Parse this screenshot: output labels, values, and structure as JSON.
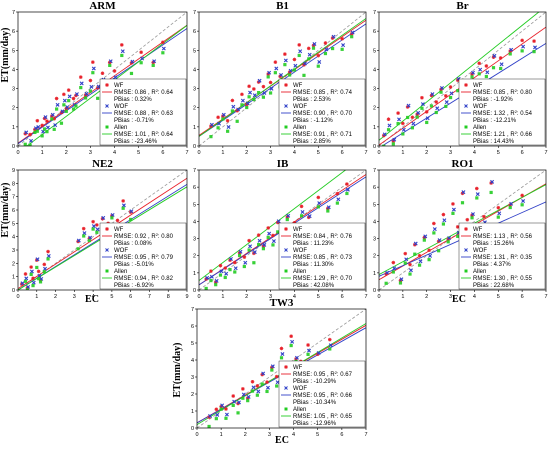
{
  "figure": {
    "ylabel": "ET(mm/day)",
    "xlabel": "EC"
  },
  "colors": {
    "WF": "#e8202a",
    "WOF": "#3040c8",
    "Allen": "#22cc22",
    "one_to_one": "#9a9a9a"
  },
  "legend_names": [
    "WF",
    "WOF",
    "Allen"
  ],
  "chart_data": [
    {
      "type": "scatter",
      "title": "ARM",
      "xlim": [
        0,
        7
      ],
      "ylim": [
        0,
        7
      ],
      "xticks": [
        0,
        1,
        2,
        3,
        4,
        5,
        6,
        7
      ],
      "yticks": [
        0,
        1,
        2,
        3,
        4,
        5,
        6,
        7
      ],
      "stats": [
        {
          "name": "WF",
          "rmse": "RMSE: 0.86 , R",
          "r2": ": 0.64",
          "pbias": "PBias : 0.32%",
          "slope": 0.88,
          "intercept": 0.15
        },
        {
          "name": "WOF",
          "rmse": "RMSE: 0.88 , R",
          "r2": ": 0.63",
          "pbias": "PBias : -0.71%",
          "slope": 0.86,
          "intercept": 0.12
        },
        {
          "name": "Allen",
          "rmse": "RMSE: 1.01 , R",
          "r2": ": 0.64",
          "pbias": "PBias : -23.46%",
          "slope": 0.95,
          "intercept": -0.35
        }
      ],
      "x": [
        0.3,
        0.5,
        0.7,
        0.8,
        1.0,
        1.1,
        1.2,
        1.4,
        1.5,
        1.6,
        1.8,
        1.9,
        2.0,
        2.1,
        2.3,
        2.4,
        2.6,
        2.8,
        3.0,
        3.1,
        3.3,
        3.5,
        3.8,
        4.0,
        4.3,
        4.7,
        5.1,
        5.6,
        6.0
      ],
      "y": [
        0.6,
        0.4,
        0.9,
        1.2,
        0.8,
        1.4,
        1.1,
        1.6,
        1.3,
        2.2,
        1.7,
        2.5,
        2.0,
        2.8,
        2.2,
        2.6,
        3.4,
        2.7,
        3.3,
        4.1,
        3.0,
        3.6,
        4.4,
        3.8,
        5.0,
        4.3,
        4.7,
        4.4,
        5.3
      ]
    },
    {
      "type": "scatter",
      "title": "B1",
      "xlim": [
        0,
        7
      ],
      "ylim": [
        0,
        7
      ],
      "xticks": [
        0,
        1,
        2,
        3,
        4,
        5,
        6,
        7
      ],
      "yticks": [
        0,
        1,
        2,
        3,
        4,
        5,
        6,
        7
      ],
      "stats": [
        {
          "name": "WF",
          "rmse": "RMSE: 0.85 , R",
          "r2": ": 0.74",
          "pbias": "PBias : 2.53%",
          "slope": 0.86,
          "intercept": 0.55
        },
        {
          "name": "WOF",
          "rmse": "RMSE: 0.90 , R",
          "r2": ": 0.70",
          "pbias": "PBias : -1.12%",
          "slope": 0.84,
          "intercept": 0.5
        },
        {
          "name": "Allen",
          "rmse": "RMSE: 0.91 , R",
          "r2": ": 0.71",
          "pbias": "PBias : 2.85%",
          "slope": 0.88,
          "intercept": 0.5
        }
      ],
      "x": [
        0.5,
        0.8,
        1.0,
        1.2,
        1.4,
        1.6,
        1.8,
        2.0,
        2.1,
        2.3,
        2.5,
        2.7,
        2.9,
        3.0,
        3.2,
        3.4,
        3.6,
        3.8,
        4.0,
        4.2,
        4.4,
        4.6,
        4.8,
        5.0,
        5.3,
        5.6,
        6.0,
        6.4
      ],
      "y": [
        1.0,
        1.3,
        1.6,
        1.2,
        2.1,
        1.8,
        2.5,
        2.2,
        3.0,
        2.7,
        3.3,
        2.9,
        3.8,
        3.2,
        4.1,
        3.6,
        4.6,
        3.9,
        4.4,
        5.0,
        4.2,
        4.9,
        5.3,
        4.6,
        5.1,
        5.6,
        5.4,
        5.9
      ]
    },
    {
      "type": "scatter",
      "title": "Br",
      "xlim": [
        0,
        7
      ],
      "ylim": [
        0,
        7
      ],
      "xticks": [
        0,
        1,
        2,
        3,
        4,
        5,
        6,
        7
      ],
      "yticks": [
        0,
        1,
        2,
        3,
        4,
        5,
        6,
        7
      ],
      "stats": [
        {
          "name": "WF",
          "rmse": "RMSE: 0.85 , R",
          "r2": ": 0.80",
          "pbias": "PBias : -1.92%",
          "slope": 0.88,
          "intercept": 0.05
        },
        {
          "name": "WOF",
          "rmse": "RMSE: 1.32 , R",
          "r2": ": 0.54",
          "pbias": "PBias : -12.21%",
          "slope": 0.78,
          "intercept": -0.1
        },
        {
          "name": "Allen",
          "rmse": "RMSE: 1.21 , R",
          "r2": ": 0.66",
          "pbias": "PBias : 14.43%",
          "slope": 1.0,
          "intercept": 0.3
        }
      ],
      "x": [
        0.2,
        0.4,
        0.6,
        0.8,
        1.0,
        1.2,
        1.4,
        1.6,
        1.8,
        2.0,
        2.2,
        2.4,
        2.6,
        2.8,
        3.0,
        3.3,
        3.6,
        3.9,
        4.2,
        4.5,
        4.8,
        5.1,
        5.5,
        6.0,
        6.5
      ],
      "y": [
        0.5,
        1.2,
        0.3,
        1.6,
        0.9,
        2.0,
        1.3,
        1.7,
        2.4,
        1.5,
        2.6,
        2.1,
        3.0,
        2.5,
        2.8,
        3.4,
        3.1,
        3.8,
        4.2,
        3.9,
        4.6,
        4.4,
        5.0,
        5.4,
        5.2
      ]
    },
    {
      "type": "scatter",
      "title": "NE2",
      "xlim": [
        0,
        9
      ],
      "ylim": [
        0,
        9
      ],
      "xticks": [
        0,
        1,
        2,
        3,
        4,
        5,
        6,
        7,
        8,
        9
      ],
      "yticks": [
        0,
        1,
        2,
        3,
        4,
        5,
        6,
        7,
        8,
        9
      ],
      "stats": [
        {
          "name": "WF",
          "rmse": "RMSE: 0.92 , R",
          "r2": ": 0.80",
          "pbias": "PBias : 0.08%",
          "slope": 0.92,
          "intercept": 0.1
        },
        {
          "name": "WOF",
          "rmse": "RMSE: 0.95 , R",
          "r2": ": 0.79",
          "pbias": "PBias : -5.01%",
          "slope": 0.88,
          "intercept": 0.0
        },
        {
          "name": "Allen",
          "rmse": "RMSE: 0.94 , R",
          "r2": ": 0.82",
          "pbias": "PBias : -6.92%",
          "slope": 0.86,
          "intercept": 0.0
        }
      ],
      "x": [
        0.2,
        0.4,
        0.5,
        0.7,
        0.8,
        1.0,
        1.1,
        1.2,
        1.4,
        1.6,
        3.2,
        3.5,
        3.8,
        4.0,
        4.2,
        4.5,
        4.8,
        5.0,
        5.3,
        5.6,
        6.0
      ],
      "y": [
        0.4,
        1.0,
        0.2,
        1.6,
        0.6,
        2.2,
        1.2,
        0.8,
        1.8,
        2.6,
        3.6,
        4.4,
        3.9,
        5.0,
        4.6,
        5.3,
        4.8,
        5.6,
        5.1,
        6.4,
        5.8
      ]
    },
    {
      "type": "scatter",
      "title": "IB",
      "xlim": [
        0,
        7
      ],
      "ylim": [
        0,
        7
      ],
      "xticks": [
        0,
        1,
        2,
        3,
        4,
        5,
        6,
        7
      ],
      "yticks": [
        0,
        1,
        2,
        3,
        4,
        5,
        6,
        7
      ],
      "stats": [
        {
          "name": "WF",
          "rmse": "RMSE: 0.84 , R",
          "r2": ": 0.76",
          "pbias": "PBias : 11.23%",
          "slope": 0.92,
          "intercept": 0.3
        },
        {
          "name": "WOF",
          "rmse": "RMSE: 0.85 , R",
          "r2": ": 0.73",
          "pbias": "PBias : 11.30%",
          "slope": 0.9,
          "intercept": 0.3
        },
        {
          "name": "Allen",
          "rmse": "RMSE: 1.29 , R",
          "r2": ": 0.70",
          "pbias": "PBias : 42.08%",
          "slope": 1.05,
          "intercept": 0.55
        }
      ],
      "x": [
        0.3,
        0.5,
        0.7,
        0.9,
        1.1,
        1.3,
        1.5,
        1.7,
        1.9,
        2.1,
        2.3,
        2.5,
        2.7,
        2.9,
        3.1,
        3.3,
        3.5,
        3.7,
        4.0,
        4.3,
        4.6,
        5.0,
        5.4,
        5.8,
        6.2
      ],
      "y": [
        0.6,
        0.9,
        0.5,
        1.3,
        1.0,
        1.7,
        1.4,
        2.2,
        1.8,
        2.6,
        2.1,
        3.0,
        2.6,
        3.5,
        2.9,
        3.9,
        3.3,
        4.3,
        3.8,
        4.6,
        4.2,
        5.2,
        4.8,
        5.5,
        5.9
      ]
    },
    {
      "type": "scatter",
      "title": "RO1",
      "xlim": [
        0,
        7
      ],
      "ylim": [
        0,
        7
      ],
      "xticks": [
        0,
        1,
        2,
        3,
        4,
        5,
        6,
        7
      ],
      "yticks": [
        0,
        1,
        2,
        3,
        4,
        5,
        6,
        7
      ],
      "stats": [
        {
          "name": "WF",
          "rmse": "RMSE: 1.13 , R",
          "r2": ": 0.56",
          "pbias": "PBias : 15.26%",
          "slope": 0.8,
          "intercept": 0.6
        },
        {
          "name": "WOF",
          "rmse": "RMSE: 1.31 , R",
          "r2": ": 0.35",
          "pbias": "PBias : 4.37%",
          "slope": 0.62,
          "intercept": 0.8
        },
        {
          "name": "Allen",
          "rmse": "RMSE: 1.30 , R",
          "r2": ": 0.55",
          "pbias": "PBias : 22.68%",
          "slope": 0.75,
          "intercept": 0.9
        }
      ],
      "x": [
        0.3,
        0.6,
        0.9,
        1.1,
        1.3,
        1.5,
        1.7,
        1.9,
        2.1,
        2.3,
        2.5,
        2.7,
        2.9,
        3.1,
        3.3,
        3.5,
        3.7,
        3.9,
        4.1,
        4.4,
        4.7,
        5.0,
        5.5,
        6.0
      ],
      "y": [
        0.9,
        1.4,
        0.6,
        2.0,
        1.2,
        2.6,
        1.8,
        3.1,
        2.2,
        3.6,
        2.8,
        4.2,
        3.0,
        4.9,
        3.4,
        5.6,
        3.9,
        4.4,
        5.8,
        4.0,
        6.2,
        4.6,
        5.0,
        5.4
      ]
    },
    {
      "type": "scatter",
      "title": "TW3",
      "xlim": [
        0,
        7
      ],
      "ylim": [
        0,
        7
      ],
      "xticks": [
        0,
        1,
        2,
        3,
        4,
        5,
        6,
        7
      ],
      "yticks": [
        0,
        1,
        2,
        3,
        4,
        5,
        6,
        7
      ],
      "stats": [
        {
          "name": "WF",
          "rmse": "RMSE: 0.95 , R",
          "r2": ": 0.67",
          "pbias": "PBias : -10.29%",
          "slope": 0.82,
          "intercept": 0.3
        },
        {
          "name": "WOF",
          "rmse": "RMSE: 0.95 , R",
          "r2": ": 0.66",
          "pbias": "PBias : -10.34%",
          "slope": 0.8,
          "intercept": 0.3
        },
        {
          "name": "Allen",
          "rmse": "RMSE: 1.05 , R",
          "r2": ": 0.65",
          "pbias": "PBias : -12.96%",
          "slope": 0.85,
          "intercept": 0.2
        }
      ],
      "x": [
        0.5,
        0.8,
        1.0,
        1.2,
        1.5,
        1.7,
        1.9,
        2.1,
        2.3,
        2.5,
        2.7,
        2.9,
        3.1,
        3.3,
        3.5,
        3.7,
        3.9,
        4.1,
        4.3,
        4.6,
        5.0,
        5.5
      ],
      "y": [
        0.6,
        0.9,
        1.3,
        1.0,
        1.6,
        1.4,
        2.1,
        1.8,
        2.6,
        2.2,
        3.1,
        2.5,
        3.6,
        2.9,
        4.4,
        3.5,
        5.2,
        4.1,
        3.8,
        4.6,
        4.3,
        5.0
      ]
    }
  ]
}
